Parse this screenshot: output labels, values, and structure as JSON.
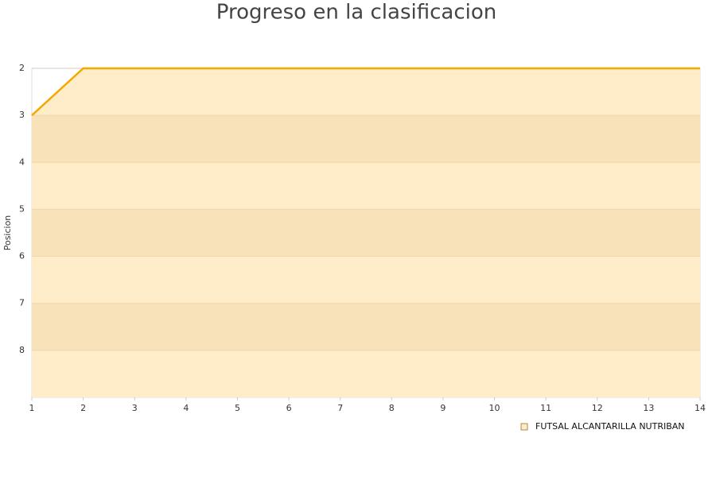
{
  "chart_data": {
    "type": "line",
    "title": "Progreso en la clasificacion",
    "y_label": "Posicion",
    "x": [
      1,
      2,
      3,
      4,
      5,
      6,
      7,
      8,
      9,
      10,
      11,
      12,
      13,
      14
    ],
    "series": [
      {
        "name": "FUTSAL ALCANTARILLA NUTRIBAN",
        "color": "#f5a800",
        "fill": "#ffecc8",
        "values": [
          3,
          2,
          2,
          2,
          2,
          2,
          2,
          2,
          2,
          2,
          2,
          2,
          2,
          2
        ]
      }
    ],
    "xlim": [
      1,
      14
    ],
    "xticks": [
      1,
      2,
      3,
      4,
      5,
      6,
      7,
      8,
      9,
      10,
      11,
      12,
      13,
      14
    ],
    "ylim": [
      9,
      2
    ],
    "yticks": [
      2,
      3,
      4,
      5,
      6,
      7,
      8
    ],
    "grid_bands": true,
    "legend": "bottom-right"
  }
}
